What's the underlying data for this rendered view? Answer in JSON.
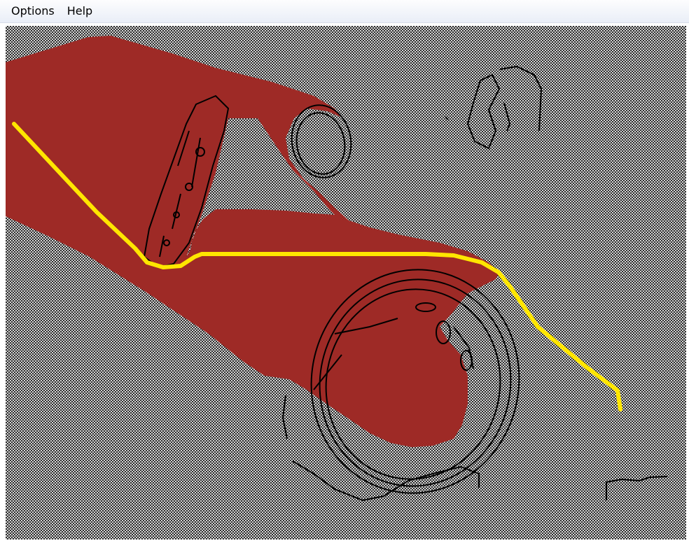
{
  "menu": {
    "items": [
      {
        "label": "Options"
      },
      {
        "label": "Help"
      }
    ]
  },
  "canvas": {
    "background_colors": [
      "#2c2c2c",
      "#d6d6d6"
    ],
    "region_color": "#9e2a26",
    "path_color": "#ffe600",
    "edge_color": "#000000"
  }
}
